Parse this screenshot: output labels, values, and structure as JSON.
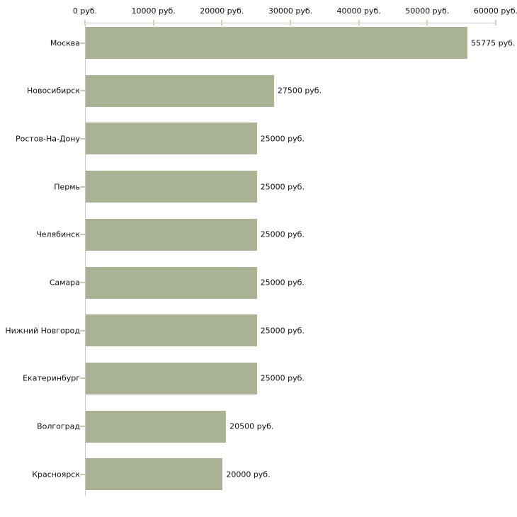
{
  "chart_data": {
    "type": "bar",
    "orientation": "horizontal",
    "title": "",
    "xlabel": "",
    "ylabel": "",
    "unit": "руб.",
    "xlim": [
      0,
      60000
    ],
    "grid": false,
    "legend": false,
    "categories": [
      "Москва",
      "Новосибирск",
      "Ростов-На-Дону",
      "Пермь",
      "Челябинск",
      "Самара",
      "Нижний Новгород",
      "Екатеринбург",
      "Волгоград",
      "Красноярск"
    ],
    "values": [
      55775,
      27500,
      25000,
      25000,
      25000,
      25000,
      25000,
      25000,
      20500,
      20000
    ],
    "value_labels": [
      "55775 руб.",
      "27500 руб.",
      "25000 руб.",
      "25000 руб.",
      "25000 руб.",
      "25000 руб.",
      "25000 руб.",
      "25000 руб.",
      "20500 руб.",
      "20000 руб."
    ],
    "x_ticks": [
      0,
      10000,
      20000,
      30000,
      40000,
      50000,
      60000
    ],
    "x_tick_labels": [
      "0 руб.",
      "10000 руб.",
      "20000 руб.",
      "30000 руб.",
      "40000 руб.",
      "50000 руб.",
      "60000 руб."
    ],
    "colors": {
      "bar": "#aab295",
      "axis_line": "#c6c6c6",
      "x_tick": "#d3d4ad",
      "category_tick": "#c9caa4",
      "text": "#111111",
      "background": "#ffffff"
    }
  }
}
